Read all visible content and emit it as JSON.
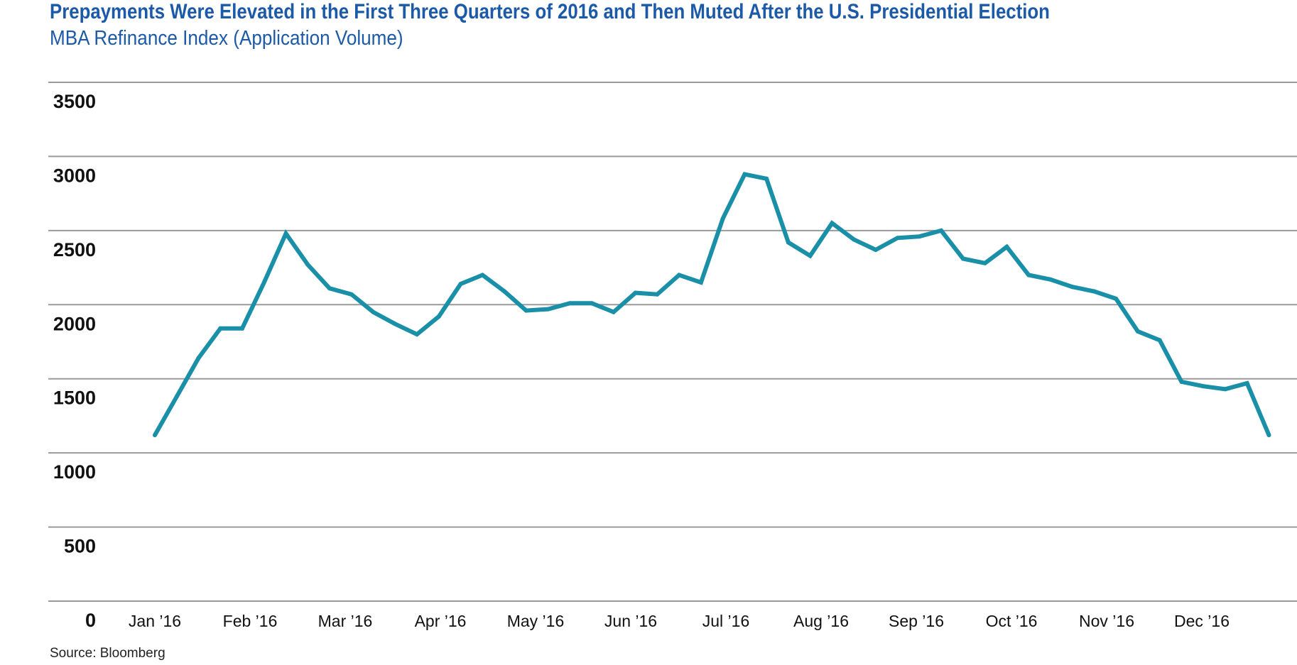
{
  "title": "Prepayments Were Elevated in the First Three Quarters of 2016 and Then Muted After the U.S. Presidential Election",
  "subtitle": "MBA Refinance Index (Application Volume)",
  "source": "Source: Bloomberg",
  "colors": {
    "title": "#1c5aa8",
    "line": "#1a8fa8",
    "grid": "#9a9a9a"
  },
  "chart_data": {
    "type": "line",
    "title": "",
    "xlabel": "",
    "ylabel": "",
    "ylim": [
      0,
      3500
    ],
    "yticks": [
      0,
      500,
      1000,
      1500,
      2000,
      2500,
      3000,
      3500
    ],
    "ytick_labels": [
      "0",
      "500",
      "1000",
      "1500",
      "2000",
      "2500",
      "3000",
      "3500"
    ],
    "xtick_labels": [
      "Jan ’16",
      "Feb ’16",
      "Mar ’16",
      "Apr ’16",
      "May ’16",
      "Jun ’16",
      "Jul ’16",
      "Aug ’16",
      "Sep ’16",
      "Oct ’16",
      "Nov ’16",
      "Dec ’16"
    ],
    "grid": true,
    "legend": "none",
    "series": [
      {
        "x": [
          "2016-01-08",
          "2016-01-15",
          "2016-01-22",
          "2016-01-29",
          "2016-02-05",
          "2016-02-12",
          "2016-02-19",
          "2016-02-26",
          "2016-03-04",
          "2016-03-11",
          "2016-03-18",
          "2016-03-25",
          "2016-04-01",
          "2016-04-08",
          "2016-04-15",
          "2016-04-22",
          "2016-04-29",
          "2016-05-06",
          "2016-05-13",
          "2016-05-20",
          "2016-05-27",
          "2016-06-03",
          "2016-06-10",
          "2016-06-17",
          "2016-06-24",
          "2016-07-01",
          "2016-07-08",
          "2016-07-15",
          "2016-07-22",
          "2016-07-29",
          "2016-08-05",
          "2016-08-12",
          "2016-08-19",
          "2016-08-26",
          "2016-09-02",
          "2016-09-09",
          "2016-09-16",
          "2016-09-23",
          "2016-09-30",
          "2016-10-07",
          "2016-10-14",
          "2016-10-21",
          "2016-10-28",
          "2016-11-04",
          "2016-11-11",
          "2016-11-18",
          "2016-11-25",
          "2016-12-02",
          "2016-12-09",
          "2016-12-16",
          "2016-12-23",
          "2016-12-30"
        ],
        "values": [
          1120,
          1380,
          1640,
          1840,
          1840,
          2150,
          2480,
          2270,
          2110,
          2070,
          1950,
          1870,
          1800,
          1920,
          2140,
          2200,
          2090,
          1960,
          1970,
          2010,
          2010,
          1950,
          2080,
          2070,
          2200,
          2150,
          2580,
          2880,
          2850,
          2420,
          2330,
          2550,
          2440,
          2370,
          2450,
          2460,
          2500,
          2310,
          2280,
          2390,
          2200,
          2170,
          2120,
          2090,
          2040,
          1820,
          1760,
          1480,
          1450,
          1430,
          1470,
          1120
        ]
      }
    ]
  }
}
